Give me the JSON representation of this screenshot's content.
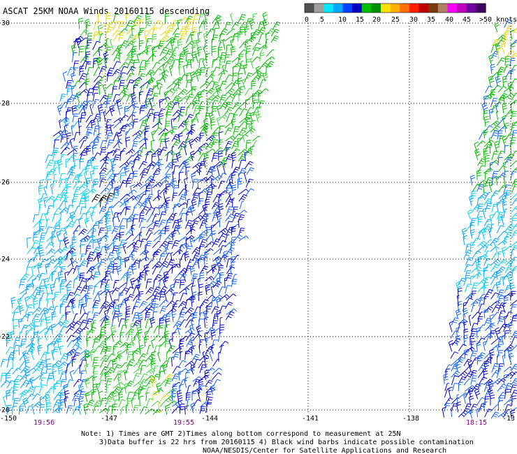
{
  "title": "ASCAT 25KM NOAA Winds 20160115 descending",
  "legend": {
    "colors": [
      "#505050",
      "#a0a0a0",
      "#00e8ff",
      "#00a8ff",
      "#0040ff",
      "#0000c0",
      "#00c000",
      "#009000",
      "#ffe000",
      "#ffb000",
      "#ff7000",
      "#ff2000",
      "#c00000",
      "#7a3a10",
      "#b08060",
      "#ff00ff",
      "#c000c0",
      "#7000a0",
      "#400060"
    ],
    "labels": [
      "0",
      "5",
      "10",
      "15",
      "20",
      "25",
      "30",
      "35",
      "40",
      "45",
      ">50 knots"
    ]
  },
  "latitude_labels": [
    "30",
    "28",
    "26",
    "24",
    "22",
    "20"
  ],
  "longitude_labels": [
    "-150",
    "-147",
    "-144",
    "-141",
    "-138",
    "-13"
  ],
  "time_labels": [
    "19:56",
    "19:55",
    "18:15"
  ],
  "notes": [
    "Note: 1) Times are GMT 2)Times along bottom correspond to measurement at 25N",
    "3)Data buffer is 22 hrs from 20160115 4) Black wind barbs indicate possible contamination",
    "NOAA/NESDIS/Center for Satellite Applications and Research"
  ],
  "barb_colors": {
    "yellow": "#e8d800",
    "green": "#00b800",
    "light_green": "#40d040",
    "blue": "#0000c8",
    "mid_blue": "#1060ff",
    "light_blue": "#00a0ff",
    "cyan": "#00d0f0",
    "contamination": "#000000"
  },
  "time_label_color": "#800080"
}
